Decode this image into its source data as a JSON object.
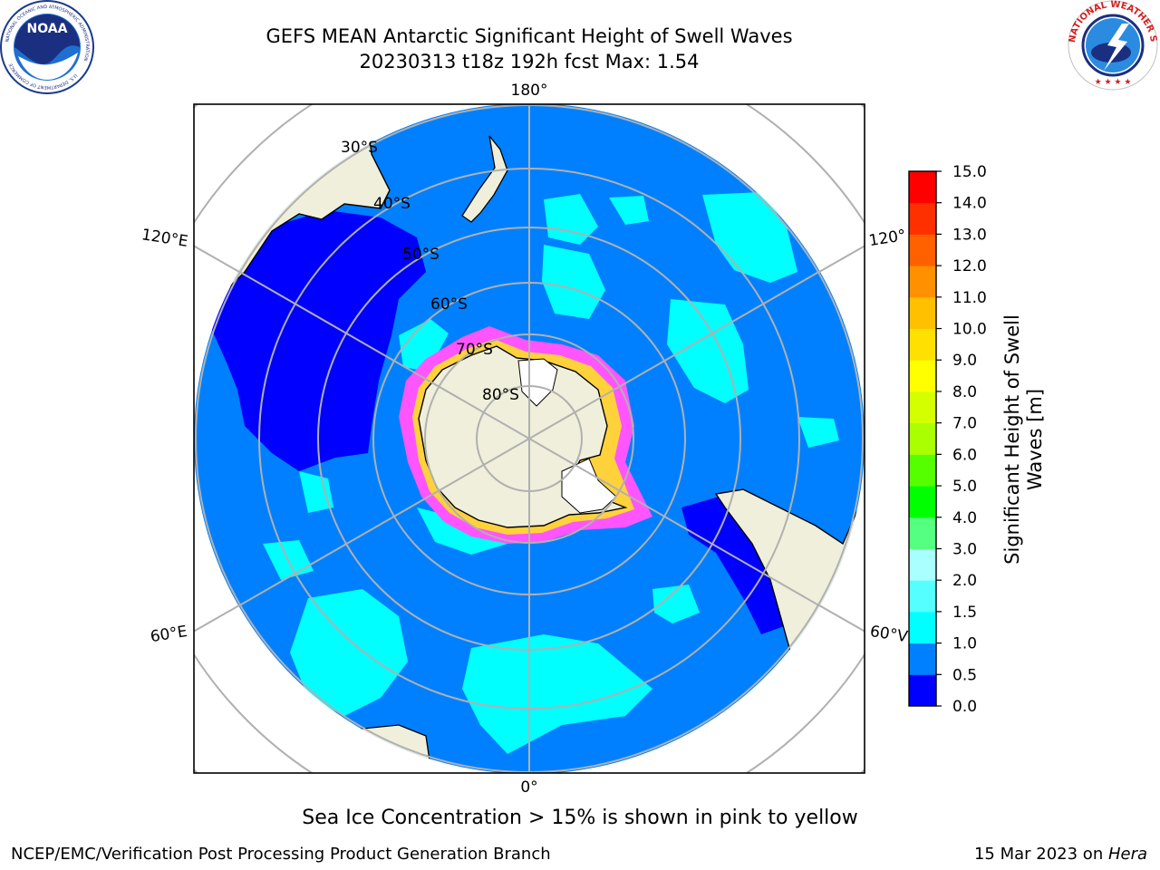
{
  "title": {
    "line1": "GEFS MEAN Antarctic Significant Height of Swell Waves",
    "line2": "20230313 t18z 192h fcst   Max: 1.54"
  },
  "logos": {
    "noaa_text": "NOAA",
    "noaa_ring": "NATIONAL OCEANIC AND ATMOSPHERIC ADMINISTRATION",
    "noaa_ring_bottom": "U.S. DEPARTMENT OF COMMERCE",
    "nws_ring": "NATIONAL WEATHER SERVICE"
  },
  "map": {
    "longitude_labels": [
      "180°",
      "120°E",
      "120°",
      "60°E",
      "60°V",
      "0°"
    ],
    "latitude_labels": [
      "30°S",
      "40°S",
      "50°S",
      "60°S",
      "70°S",
      "80°S"
    ],
    "colors": {
      "land": "#efefdb",
      "ocean_low": "#0080ff",
      "ocean_min": "#0000ff",
      "ice": "#ff55ff",
      "grid": "#b0b0b0"
    }
  },
  "colorbar": {
    "title_line1": "Significant Height of Swell",
    "title_line2": "Waves [m]",
    "ticks": [
      "0.0",
      "0.5",
      "1.0",
      "1.5",
      "2.0",
      "3.0",
      "4.0",
      "5.0",
      "6.0",
      "7.0",
      "8.0",
      "9.0",
      "10.0",
      "11.0",
      "12.0",
      "13.0",
      "14.0",
      "15.0"
    ],
    "colors": [
      "#0000ff",
      "#0080ff",
      "#00ffff",
      "#55ffff",
      "#aaffff",
      "#55ff80",
      "#00ff00",
      "#55ff00",
      "#aaff00",
      "#d4ff00",
      "#ffff00",
      "#ffe000",
      "#ffc000",
      "#ff9000",
      "#ff6000",
      "#ff3000",
      "#ff0000"
    ]
  },
  "note": "Sea Ice Concentration > 15% is shown in pink to yellow",
  "footer": {
    "left": "NCEP/EMC/Verification Post Processing Product Generation Branch",
    "right_date": "15 Mar 2023 on ",
    "right_host": "Hera"
  }
}
